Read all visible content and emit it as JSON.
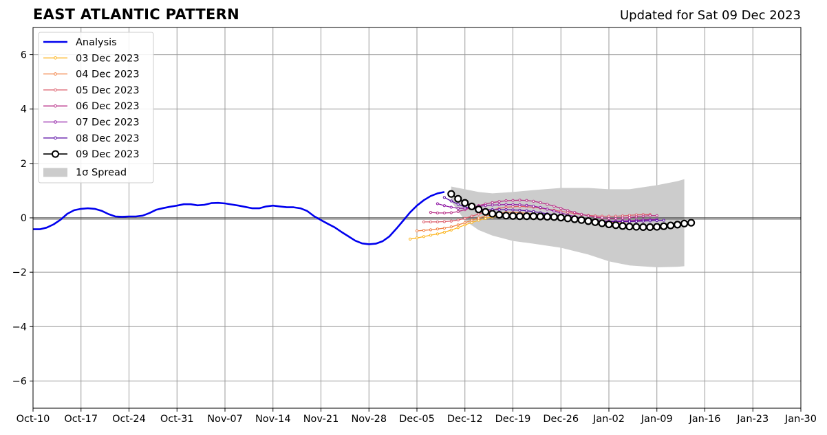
{
  "title": "EAST ATLANTIC PATTERN",
  "subtitle": "Updated for Sat 09 Dec 2023",
  "colors": {
    "analysis": "#0000ee",
    "spread": "#cccccc",
    "grid": "#999999",
    "zero_line": "#444444"
  },
  "chart_data": {
    "type": "line",
    "xlim": [
      "2023-10-10",
      "2024-01-30"
    ],
    "ylim": [
      -7,
      7
    ],
    "xticks": [
      "Oct-10",
      "Oct-17",
      "Oct-24",
      "Oct-31",
      "Nov-07",
      "Nov-14",
      "Nov-21",
      "Nov-28",
      "Dec-05",
      "Dec-12",
      "Dec-19",
      "Dec-26",
      "Jan-02",
      "Jan-09",
      "Jan-16",
      "Jan-23",
      "Jan-30"
    ],
    "xtick_dates": [
      "2023-10-10",
      "2023-10-17",
      "2023-10-24",
      "2023-10-31",
      "2023-11-07",
      "2023-11-14",
      "2023-11-21",
      "2023-11-28",
      "2023-12-05",
      "2023-12-12",
      "2023-12-19",
      "2023-12-26",
      "2024-01-02",
      "2024-01-09",
      "2024-01-16",
      "2024-01-23",
      "2024-01-30"
    ],
    "yticks": [
      6,
      4,
      2,
      0,
      -2,
      -4,
      -6
    ],
    "ytick_labels": [
      "6",
      "4",
      "2",
      "0",
      "−2",
      "−4",
      "−6"
    ],
    "grid": true,
    "legend_placement": "top-left",
    "analysis": {
      "name": "Analysis",
      "color": "#0000ee",
      "x": [
        "2023-10-10",
        "2023-10-11",
        "2023-10-12",
        "2023-10-13",
        "2023-10-14",
        "2023-10-15",
        "2023-10-16",
        "2023-10-17",
        "2023-10-18",
        "2023-10-19",
        "2023-10-20",
        "2023-10-21",
        "2023-10-22",
        "2023-10-23",
        "2023-10-24",
        "2023-10-25",
        "2023-10-26",
        "2023-10-27",
        "2023-10-28",
        "2023-10-29",
        "2023-10-30",
        "2023-10-31",
        "2023-11-01",
        "2023-11-02",
        "2023-11-03",
        "2023-11-04",
        "2023-11-05",
        "2023-11-06",
        "2023-11-07",
        "2023-11-08",
        "2023-11-09",
        "2023-11-10",
        "2023-11-11",
        "2023-11-12",
        "2023-11-13",
        "2023-11-14",
        "2023-11-15",
        "2023-11-16",
        "2023-11-17",
        "2023-11-18",
        "2023-11-19",
        "2023-11-20",
        "2023-11-21",
        "2023-11-22",
        "2023-11-23",
        "2023-11-24",
        "2023-11-25",
        "2023-11-26",
        "2023-11-27",
        "2023-11-28",
        "2023-11-29",
        "2023-11-30",
        "2023-12-01",
        "2023-12-02",
        "2023-12-03",
        "2023-12-04",
        "2023-12-05",
        "2023-12-06",
        "2023-12-07",
        "2023-12-08",
        "2023-12-09"
      ],
      "y": [
        -0.42,
        -0.42,
        -0.36,
        -0.24,
        -0.07,
        0.15,
        0.28,
        0.33,
        0.35,
        0.33,
        0.26,
        0.14,
        0.05,
        0.04,
        0.05,
        0.05,
        0.08,
        0.18,
        0.3,
        0.36,
        0.41,
        0.45,
        0.5,
        0.5,
        0.46,
        0.48,
        0.54,
        0.55,
        0.53,
        0.49,
        0.45,
        0.4,
        0.35,
        0.35,
        0.42,
        0.45,
        0.42,
        0.39,
        0.39,
        0.35,
        0.25,
        0.06,
        -0.08,
        -0.22,
        -0.35,
        -0.52,
        -0.68,
        -0.84,
        -0.94,
        -0.97,
        -0.95,
        -0.86,
        -0.68,
        -0.4,
        -0.1,
        0.2,
        0.45,
        0.65,
        0.8,
        0.9,
        0.95
      ]
    },
    "forecasts": [
      {
        "name": "03 Dec 2023",
        "color": "#fcb51f",
        "start": "2023-12-04",
        "y": [
          -0.78,
          -0.74,
          -0.69,
          -0.64,
          -0.59,
          -0.53,
          -0.45,
          -0.36,
          -0.26,
          -0.17,
          -0.09,
          -0.02,
          0.03,
          0.06,
          0.07,
          0.07,
          0.06,
          0.05,
          0.04,
          0.03,
          0.02,
          0.01,
          0.0,
          -0.02,
          -0.04,
          -0.06,
          -0.08,
          -0.1,
          -0.11,
          -0.12,
          -0.12,
          -0.12,
          -0.12,
          -0.11
        ]
      },
      {
        "name": "04 Dec 2023",
        "color": "#f18144",
        "start": "2023-12-05",
        "y": [
          -0.48,
          -0.46,
          -0.44,
          -0.41,
          -0.38,
          -0.33,
          -0.26,
          -0.18,
          -0.09,
          -0.01,
          0.07,
          0.13,
          0.17,
          0.2,
          0.2,
          0.19,
          0.17,
          0.14,
          0.1,
          0.06,
          0.02,
          -0.02,
          -0.06,
          -0.09,
          -0.11,
          -0.13,
          -0.15,
          -0.16,
          -0.16,
          -0.16,
          -0.15,
          -0.14,
          -0.13,
          -0.12
        ]
      },
      {
        "name": "05 Dec 2023",
        "color": "#dc5d6b",
        "start": "2023-12-06",
        "y": [
          -0.15,
          -0.15,
          -0.15,
          -0.14,
          -0.12,
          -0.08,
          -0.02,
          0.06,
          0.14,
          0.22,
          0.29,
          0.35,
          0.39,
          0.41,
          0.42,
          0.41,
          0.39,
          0.36,
          0.32,
          0.28,
          0.24,
          0.2,
          0.16,
          0.12,
          0.09,
          0.07,
          0.06,
          0.06,
          0.06,
          0.07,
          0.09,
          0.11,
          0.12,
          0.12
        ]
      },
      {
        "name": "06 Dec 2023",
        "color": "#b83288",
        "start": "2023-12-07",
        "y": [
          0.2,
          0.18,
          0.18,
          0.19,
          0.23,
          0.3,
          0.38,
          0.45,
          0.51,
          0.56,
          0.6,
          0.63,
          0.64,
          0.65,
          0.64,
          0.61,
          0.56,
          0.5,
          0.43,
          0.35,
          0.27,
          0.2,
          0.13,
          0.07,
          0.03,
          0.0,
          -0.02,
          -0.02,
          -0.01,
          0.01,
          0.04,
          0.06,
          0.08,
          0.08
        ]
      },
      {
        "name": "07 Dec 2023",
        "color": "#8f19a4",
        "start": "2023-12-08",
        "y": [
          0.52,
          0.45,
          0.39,
          0.35,
          0.35,
          0.38,
          0.42,
          0.45,
          0.47,
          0.48,
          0.49,
          0.49,
          0.48,
          0.46,
          0.43,
          0.38,
          0.32,
          0.25,
          0.18,
          0.11,
          0.05,
          -0.01,
          -0.06,
          -0.09,
          -0.11,
          -0.12,
          -0.12,
          -0.11,
          -0.1,
          -0.09,
          -0.08,
          -0.07,
          -0.06
        ]
      },
      {
        "name": "08 Dec 2023",
        "color": "#5b0fa6",
        "start": "2023-12-09",
        "y": [
          0.75,
          0.62,
          0.5,
          0.4,
          0.34,
          0.31,
          0.3,
          0.3,
          0.3,
          0.3,
          0.29,
          0.28,
          0.26,
          0.23,
          0.19,
          0.15,
          0.1,
          0.05,
          0.01,
          -0.03,
          -0.07,
          -0.1,
          -0.12,
          -0.13,
          -0.14,
          -0.14,
          -0.14,
          -0.14,
          -0.13,
          -0.12,
          -0.11,
          -0.1,
          -0.09
        ]
      },
      {
        "name": "09 Dec 2023",
        "color": "#000000",
        "start": "2023-12-10",
        "y": [
          0.88,
          0.7,
          0.55,
          0.42,
          0.31,
          0.22,
          0.15,
          0.11,
          0.08,
          0.07,
          0.06,
          0.06,
          0.06,
          0.05,
          0.04,
          0.03,
          0.01,
          -0.02,
          -0.05,
          -0.08,
          -0.12,
          -0.16,
          -0.2,
          -0.24,
          -0.27,
          -0.3,
          -0.32,
          -0.33,
          -0.34,
          -0.34,
          -0.33,
          -0.31,
          -0.28,
          -0.25,
          -0.21,
          -0.18
        ]
      }
    ],
    "spread": {
      "name": "1σ Spread",
      "color": "#cccccc",
      "x": [
        "2023-12-10",
        "2023-12-12",
        "2023-12-14",
        "2023-12-16",
        "2023-12-19",
        "2023-12-22",
        "2023-12-26",
        "2023-12-30",
        "2024-01-02",
        "2024-01-05",
        "2024-01-09",
        "2024-01-12",
        "2024-01-13"
      ],
      "upper": [
        1.15,
        1.05,
        0.95,
        0.9,
        0.95,
        1.02,
        1.1,
        1.1,
        1.05,
        1.05,
        1.2,
        1.35,
        1.42
      ],
      "lower": [
        0.6,
        -0.1,
        -0.45,
        -0.65,
        -0.85,
        -0.95,
        -1.1,
        -1.35,
        -1.6,
        -1.75,
        -1.82,
        -1.8,
        -1.78
      ]
    },
    "legend": {
      "analysis_label": "Analysis",
      "spread_label": "1σ Spread"
    }
  }
}
